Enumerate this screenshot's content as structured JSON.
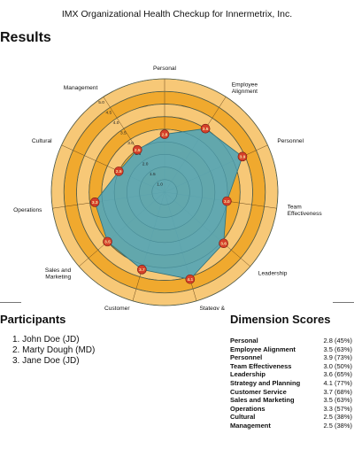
{
  "header": {
    "title": "IMX Organizational Health Checkup for Innermetrix, Inc."
  },
  "results": {
    "heading": "Results"
  },
  "chart_data": {
    "type": "radar",
    "axes": [
      "Personal",
      "Employee Alignment",
      "Personnel",
      "Team Effectiveness",
      "Leadership",
      "Stategy & Planning",
      "Customer Service",
      "Sales and Marketing",
      "Operations",
      "Cultural",
      "Management"
    ],
    "values": [
      2.8,
      3.5,
      3.9,
      3.0,
      3.6,
      4.1,
      3.7,
      3.5,
      3.3,
      2.5,
      2.5
    ],
    "ring_labels": [
      "1.0",
      "1.5",
      "2.0",
      "2.5",
      "3.0",
      "3.5",
      "4.0",
      "4.5",
      "5.0"
    ],
    "range": [
      0.5,
      5.0
    ],
    "colors": {
      "outer": "#f0a92e",
      "ring_light": "#f7c877",
      "area": "#5aa6b3",
      "marker": "#d6402a",
      "marker_text": "#f6e7a8"
    }
  },
  "participants": {
    "heading": "Participants",
    "items": [
      "1. John Doe (JD)",
      "2. Marty Dough (MD)",
      "3. Jane Doe (JD)"
    ]
  },
  "scores": {
    "heading": "Dimension Scores",
    "rows": [
      {
        "name": "Personal",
        "value": "2.8 (45%)"
      },
      {
        "name": "Employee Alignment",
        "value": "3.5 (63%)"
      },
      {
        "name": "Personnel",
        "value": "3.9 (73%)"
      },
      {
        "name": "Team Effectiveness",
        "value": "3.0 (50%)"
      },
      {
        "name": "Leadership",
        "value": "3.6 (65%)"
      },
      {
        "name": "Strategy and Planning",
        "value": "4.1 (77%)"
      },
      {
        "name": "Customer Service",
        "value": "3.7 (68%)"
      },
      {
        "name": "Sales and Marketing",
        "value": "3.5 (63%)"
      },
      {
        "name": "Operations",
        "value": "3.3 (57%)"
      },
      {
        "name": "Cultural",
        "value": "2.5 (38%)"
      },
      {
        "name": "Management",
        "value": "2.5 (38%)"
      }
    ]
  }
}
